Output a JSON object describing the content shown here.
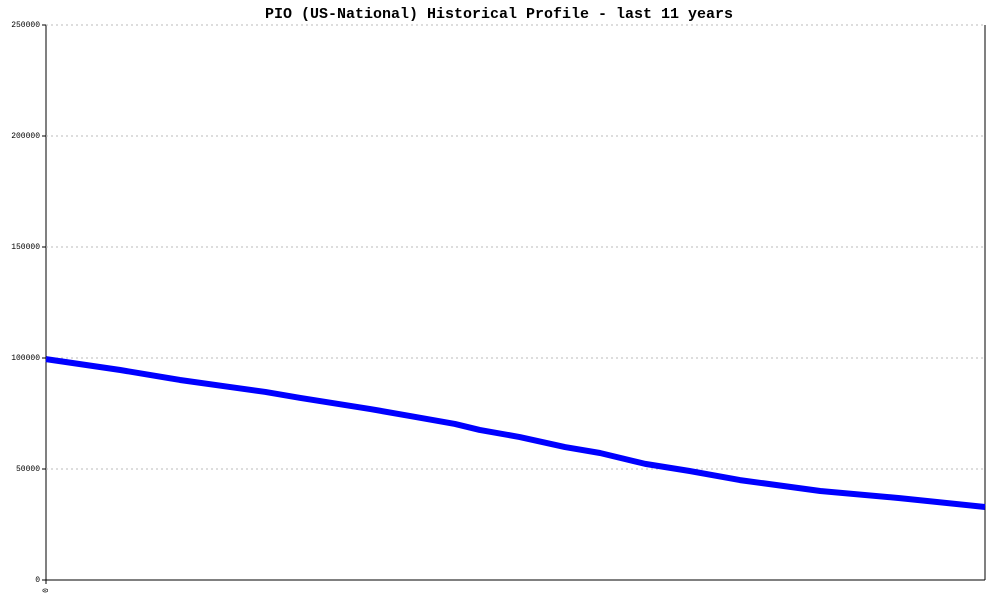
{
  "chart_data": {
    "type": "line",
    "title": "PIO (US-National) Historical Profile - last 11 years",
    "x": [
      0,
      0.87,
      1.57,
      2.16,
      2.57,
      2.98,
      3.8,
      4.26,
      4.79,
      5.08,
      5.55,
      6.08,
      6.49,
      7.02,
      7.54,
      8.13,
      9.07,
      10.0,
      11
    ],
    "xlim": [
      0,
      11
    ],
    "xticks": [
      0
    ],
    "series": [
      {
        "color": "#0000ff",
        "values": [
          99500,
          94600,
          90100,
          86900,
          84700,
          82000,
          77000,
          73900,
          70300,
          67600,
          64400,
          59900,
          57200,
          52300,
          49100,
          45000,
          40100,
          36900,
          32900
        ]
      }
    ],
    "ylim": [
      0,
      250000
    ],
    "yticks": [
      0,
      50000,
      100000,
      150000,
      200000,
      250000
    ],
    "grid": true
  }
}
